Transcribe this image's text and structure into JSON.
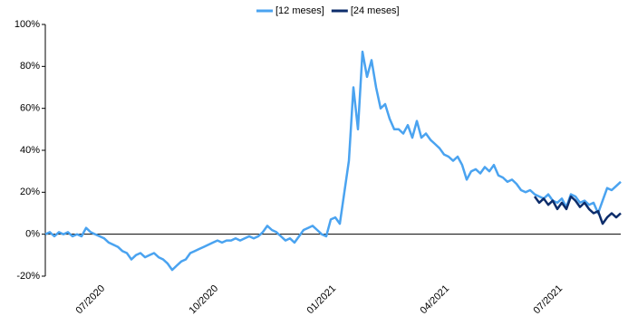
{
  "chart_data": {
    "type": "line",
    "categories": [
      null,
      null,
      null,
      null,
      null,
      null,
      null,
      null,
      null,
      null,
      null,
      null,
      "07/2020",
      null,
      null,
      null,
      null,
      null,
      null,
      null,
      null,
      null,
      null,
      null,
      null,
      null,
      null,
      null,
      null,
      null,
      null,
      null,
      null,
      null,
      null,
      null,
      null,
      "10/2020",
      null,
      null,
      null,
      null,
      null,
      null,
      null,
      null,
      null,
      null,
      null,
      null,
      null,
      null,
      null,
      null,
      null,
      null,
      null,
      null,
      null,
      null,
      null,
      null,
      null,
      "01/2021",
      null,
      null,
      null,
      null,
      null,
      null,
      null,
      null,
      null,
      null,
      null,
      null,
      null,
      null,
      null,
      null,
      null,
      null,
      null,
      null,
      null,
      null,
      null,
      null,
      "04/2021",
      null,
      null,
      null,
      null,
      null,
      null,
      null,
      null,
      null,
      null,
      null,
      null,
      null,
      null,
      null,
      null,
      null,
      null,
      null,
      null,
      null,
      null,
      null,
      null,
      "07/2021",
      null,
      null,
      null,
      null,
      null,
      null,
      null,
      null,
      null,
      null,
      null,
      null,
      null,
      null
    ],
    "series": [
      {
        "name": "[12 meses]",
        "color": "#4aa3f0",
        "values": [
          0,
          1,
          -1,
          1,
          0,
          1,
          -1,
          0,
          -1,
          3,
          1,
          0,
          -1,
          -2,
          -4,
          -5,
          -6,
          -8,
          -9,
          -12,
          -10,
          -9,
          -11,
          -10,
          -9,
          -11,
          -12,
          -14,
          -17,
          -15,
          -13,
          -12,
          -9,
          -8,
          -7,
          -6,
          -5,
          -4,
          -3,
          -4,
          -3,
          -3,
          -2,
          -3,
          -2,
          -1,
          -2,
          -1,
          1,
          4,
          2,
          1,
          -1,
          -3,
          -2,
          -4,
          -1,
          2,
          3,
          4,
          2,
          0,
          -1,
          7,
          8,
          5,
          20,
          35,
          70,
          50,
          87,
          75,
          83,
          70,
          60,
          62,
          55,
          50,
          50,
          48,
          52,
          46,
          54,
          46,
          48,
          45,
          43,
          41,
          38,
          37,
          35,
          37,
          33,
          26,
          30,
          31,
          29,
          32,
          30,
          33,
          28,
          27,
          25,
          26,
          24,
          21,
          20,
          21,
          19,
          18,
          17,
          19,
          16,
          15,
          17,
          13,
          19,
          18,
          15,
          16,
          14,
          15,
          10,
          16,
          22,
          21,
          23,
          25
        ]
      },
      {
        "name": "[24 meses]",
        "color": "#0d2d6b",
        "values": [
          null,
          null,
          null,
          null,
          null,
          null,
          null,
          null,
          null,
          null,
          null,
          null,
          null,
          null,
          null,
          null,
          null,
          null,
          null,
          null,
          null,
          null,
          null,
          null,
          null,
          null,
          null,
          null,
          null,
          null,
          null,
          null,
          null,
          null,
          null,
          null,
          null,
          null,
          null,
          null,
          null,
          null,
          null,
          null,
          null,
          null,
          null,
          null,
          null,
          null,
          null,
          null,
          null,
          null,
          null,
          null,
          null,
          null,
          null,
          null,
          null,
          null,
          null,
          null,
          null,
          null,
          null,
          null,
          null,
          null,
          null,
          null,
          null,
          null,
          null,
          null,
          null,
          null,
          null,
          null,
          null,
          null,
          null,
          null,
          null,
          null,
          null,
          null,
          null,
          null,
          null,
          null,
          null,
          null,
          null,
          null,
          null,
          null,
          null,
          null,
          null,
          null,
          null,
          null,
          null,
          null,
          null,
          null,
          18,
          15,
          17,
          14,
          16,
          12,
          15,
          12,
          18,
          16,
          13,
          15,
          12,
          10,
          11,
          5,
          8,
          10,
          8,
          10
        ]
      }
    ],
    "ylim": [
      -20,
      100
    ],
    "yticks": [
      {
        "value": -20,
        "label": "-20%"
      },
      {
        "value": 0,
        "label": "0%"
      },
      {
        "value": 20,
        "label": "20%"
      },
      {
        "value": 40,
        "label": "40%"
      },
      {
        "value": 60,
        "label": "60%"
      },
      {
        "value": 80,
        "label": "80%"
      },
      {
        "value": 100,
        "label": "100%"
      }
    ],
    "grid": false,
    "legend": "top"
  }
}
